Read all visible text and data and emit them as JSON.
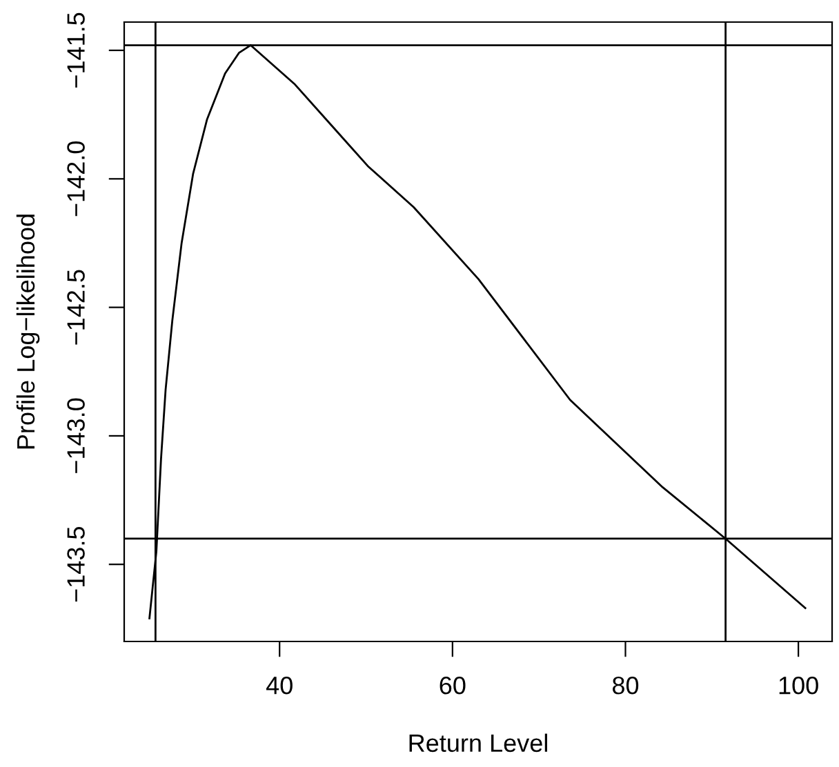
{
  "chart_data": {
    "type": "line",
    "xlabel": "Return Level",
    "ylabel": "Profile Log−likelihood",
    "xlim": [
      22.03,
      103.9
    ],
    "ylim": [
      -143.8,
      -141.39
    ],
    "xticks": [
      40,
      60,
      80,
      100
    ],
    "yticks": [
      {
        "value": -143.5,
        "label": "−143.5"
      },
      {
        "value": -143.0,
        "label": "−143.0"
      },
      {
        "value": -142.5,
        "label": "−142.5"
      },
      {
        "value": -142.0,
        "label": "−142.0"
      },
      {
        "value": -141.5,
        "label": "−141.5"
      }
    ],
    "grid": false,
    "legend": false,
    "marker": "none",
    "line_style": "solid",
    "series": [
      {
        "color": "#000000",
        "x": [
          24.95,
          25.75,
          26.29,
          26.82,
          27.6,
          28.67,
          30.0,
          31.6,
          33.7,
          35.3,
          36.65,
          41.7,
          45.95,
          50.2,
          55.5,
          63.0,
          73.6,
          84.3,
          91.58,
          100.8
        ],
        "values": [
          -143.71,
          -143.45,
          -143.09,
          -142.82,
          -142.55,
          -142.25,
          -141.98,
          -141.77,
          -141.59,
          -141.51,
          -141.48,
          -141.63,
          -141.79,
          -141.95,
          -142.11,
          -142.39,
          -142.86,
          -143.2,
          -143.4,
          -143.67
        ]
      }
    ],
    "ref_lines": [
      {
        "axis": "y",
        "value": -141.48,
        "color": "#000000"
      },
      {
        "axis": "y",
        "value": -143.4,
        "color": "#000000"
      },
      {
        "axis": "x",
        "value": 25.65,
        "color": "#000000"
      },
      {
        "axis": "x",
        "value": 91.58,
        "color": "#000000"
      }
    ]
  }
}
